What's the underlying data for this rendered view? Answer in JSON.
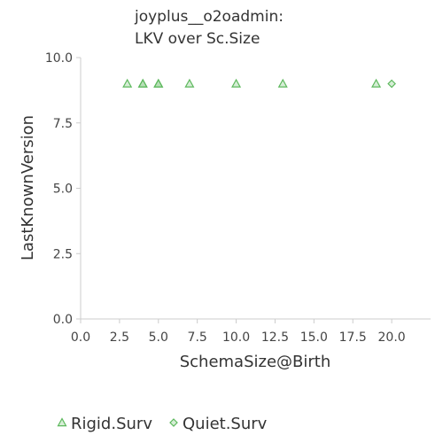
{
  "chart_data": {
    "type": "scatter",
    "title_lines": [
      "joyplus__o2oadmin:",
      "LKV over Sc.Size"
    ],
    "xlabel": "SchemaSize@Birth",
    "ylabel": "LastKnownVersion",
    "xlim": [
      0,
      22.5
    ],
    "ylim": [
      0,
      10
    ],
    "x_ticks": [
      "0.0",
      "2.5",
      "5.0",
      "7.5",
      "10.0",
      "12.5",
      "15.0",
      "17.5",
      "20.0"
    ],
    "y_ticks": [
      "0.0",
      "2.5",
      "5.0",
      "7.5",
      "10.0"
    ],
    "grid": false,
    "legend_position": "bottom-left",
    "series": [
      {
        "name": "Rigid.Surv",
        "marker": "triangle",
        "color": "#5cb85c",
        "points": [
          [
            3,
            9
          ],
          [
            4,
            9
          ],
          [
            4,
            9
          ],
          [
            5,
            9
          ],
          [
            5,
            9
          ],
          [
            7,
            9
          ],
          [
            10,
            9
          ],
          [
            13,
            9
          ],
          [
            19,
            9
          ]
        ]
      },
      {
        "name": "Quiet.Surv",
        "marker": "diamond",
        "color": "#5cb85c",
        "points": [
          [
            20,
            9
          ]
        ]
      }
    ]
  }
}
